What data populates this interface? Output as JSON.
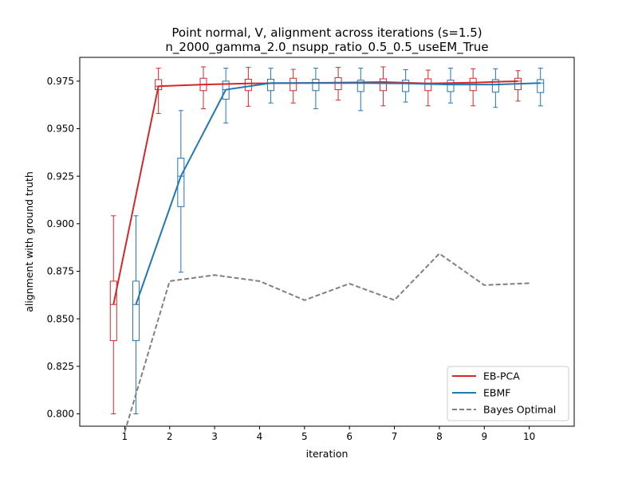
{
  "chart_data": {
    "type": "line",
    "title_line1": "Point normal, V, alignment across iterations (s=1.5)",
    "title_line2": "n_2000_gamma_2.0_nsupp_ratio_0.5_0.5_useEM_True",
    "xlabel": "iteration",
    "ylabel": "alignment with ground truth",
    "xlim": [
      0,
      11
    ],
    "ylim": [
      0.7935,
      0.9875
    ],
    "x_ticks": [
      1,
      2,
      3,
      4,
      5,
      6,
      7,
      8,
      9,
      10
    ],
    "y_ticks": [
      0.8,
      0.825,
      0.85,
      0.875,
      0.9,
      0.925,
      0.95,
      0.975
    ],
    "y_tick_labels": [
      "0.800",
      "0.825",
      "0.850",
      "0.875",
      "0.900",
      "0.925",
      "0.950",
      "0.975"
    ],
    "legend_position": "lower-right",
    "series": [
      {
        "name": "EB-PCA",
        "color": "#d62728",
        "style": "solid",
        "offset": -0.25,
        "x": [
          1,
          2,
          3,
          4,
          5,
          6,
          7,
          8,
          9,
          10
        ],
        "values": [
          0.8575,
          0.9723,
          0.9732,
          0.9738,
          0.974,
          0.9742,
          0.9745,
          0.9738,
          0.9742,
          0.975
        ],
        "boxes": [
          {
            "whislo": 0.8,
            "q1": 0.8385,
            "med": 0.8575,
            "q3": 0.8698,
            "whishi": 0.9042
          },
          {
            "whislo": 0.958,
            "q1": 0.9705,
            "med": 0.9723,
            "q3": 0.9758,
            "whishi": 0.9818
          },
          {
            "whislo": 0.9605,
            "q1": 0.97,
            "med": 0.9732,
            "q3": 0.9765,
            "whishi": 0.9825
          },
          {
            "whislo": 0.9618,
            "q1": 0.97,
            "med": 0.9738,
            "q3": 0.976,
            "whishi": 0.9822
          },
          {
            "whislo": 0.9635,
            "q1": 0.97,
            "med": 0.974,
            "q3": 0.9765,
            "whishi": 0.9812
          },
          {
            "whislo": 0.965,
            "q1": 0.9705,
            "med": 0.9742,
            "q3": 0.9768,
            "whishi": 0.9822
          },
          {
            "whislo": 0.962,
            "q1": 0.97,
            "med": 0.9745,
            "q3": 0.9762,
            "whishi": 0.9825
          },
          {
            "whislo": 0.962,
            "q1": 0.97,
            "med": 0.9738,
            "q3": 0.9762,
            "whishi": 0.9808
          },
          {
            "whislo": 0.962,
            "q1": 0.97,
            "med": 0.9742,
            "q3": 0.9765,
            "whishi": 0.9815
          },
          {
            "whislo": 0.9645,
            "q1": 0.9705,
            "med": 0.975,
            "q3": 0.9765,
            "whishi": 0.9805
          }
        ]
      },
      {
        "name": "EBMF",
        "color": "#1f77b4",
        "style": "solid",
        "offset": 0.25,
        "x": [
          1,
          2,
          3,
          4,
          5,
          6,
          7,
          8,
          9,
          10
        ],
        "values": [
          0.8575,
          0.925,
          0.9705,
          0.974,
          0.974,
          0.974,
          0.9738,
          0.9732,
          0.9732,
          0.974
        ],
        "boxes": [
          {
            "whislo": 0.8,
            "q1": 0.8385,
            "med": 0.8575,
            "q3": 0.8698,
            "whishi": 0.9042
          },
          {
            "whislo": 0.8745,
            "q1": 0.909,
            "med": 0.925,
            "q3": 0.9345,
            "whishi": 0.9595
          },
          {
            "whislo": 0.953,
            "q1": 0.9655,
            "med": 0.9705,
            "q3": 0.975,
            "whishi": 0.9818
          },
          {
            "whislo": 0.9635,
            "q1": 0.97,
            "med": 0.974,
            "q3": 0.976,
            "whishi": 0.9818
          },
          {
            "whislo": 0.9605,
            "q1": 0.97,
            "med": 0.974,
            "q3": 0.976,
            "whishi": 0.9818
          },
          {
            "whislo": 0.9595,
            "q1": 0.9695,
            "med": 0.974,
            "q3": 0.9755,
            "whishi": 0.9818
          },
          {
            "whislo": 0.964,
            "q1": 0.9695,
            "med": 0.9738,
            "q3": 0.9755,
            "whishi": 0.981
          },
          {
            "whislo": 0.9635,
            "q1": 0.9695,
            "med": 0.9732,
            "q3": 0.9755,
            "whishi": 0.9818
          },
          {
            "whislo": 0.9612,
            "q1": 0.9692,
            "med": 0.9732,
            "q3": 0.9758,
            "whishi": 0.9815
          },
          {
            "whislo": 0.962,
            "q1": 0.969,
            "med": 0.974,
            "q3": 0.9758,
            "whishi": 0.9818
          }
        ]
      },
      {
        "name": "Bayes Optimal",
        "color": "#808080",
        "style": "dashed",
        "x": [
          1,
          2,
          3,
          4,
          5,
          6,
          7,
          8,
          9,
          10
        ],
        "values": [
          0.7905,
          0.8698,
          0.873,
          0.8698,
          0.8598,
          0.8685,
          0.8598,
          0.8843,
          0.8677,
          0.8687
        ]
      }
    ]
  }
}
